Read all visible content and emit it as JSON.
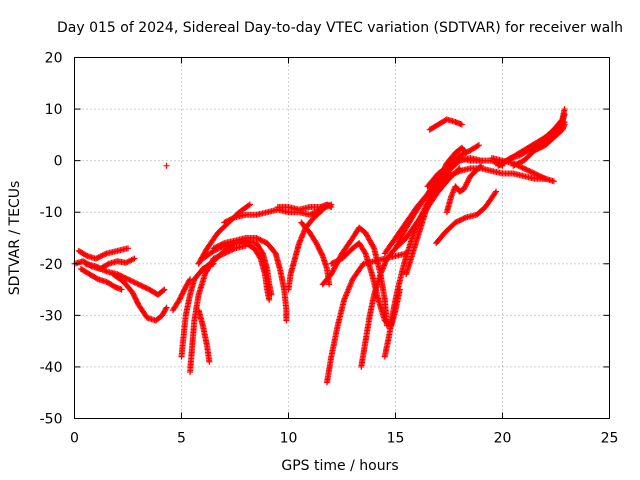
{
  "chart_data": {
    "type": "scatter",
    "title": "Day 015 of 2024, Sidereal Day-to-day VTEC variation (SDTVAR) for receiver walh",
    "xlabel": "GPS time / hours",
    "ylabel": "SDTVAR / TECUs",
    "xlim": [
      0,
      25
    ],
    "ylim": [
      -50,
      20
    ],
    "xticks": [
      0,
      5,
      10,
      15,
      20,
      25
    ],
    "yticks": [
      -50,
      -40,
      -30,
      -20,
      -10,
      0,
      10,
      20
    ],
    "grid": true,
    "legend": "none",
    "marker": "plus",
    "color": "#ff0000",
    "series": [
      {
        "points": [
          [
            0.0,
            -20
          ],
          [
            0.4,
            -19.5
          ],
          [
            0.8,
            -20.5
          ],
          [
            1.2,
            -21
          ],
          [
            1.6,
            -20
          ],
          [
            2.0,
            -19.5
          ],
          [
            2.4,
            -19.8
          ],
          [
            2.8,
            -19
          ]
        ]
      },
      {
        "points": [
          [
            0.2,
            -17.5
          ],
          [
            0.6,
            -18.5
          ],
          [
            1.0,
            -19
          ],
          [
            1.5,
            -18
          ],
          [
            2.0,
            -17.5
          ],
          [
            2.5,
            -17
          ]
        ]
      },
      {
        "points": [
          [
            0.3,
            -21
          ],
          [
            0.7,
            -22
          ],
          [
            1.1,
            -23
          ],
          [
            1.5,
            -23.5
          ],
          [
            1.9,
            -24.5
          ],
          [
            2.2,
            -25
          ]
        ]
      },
      {
        "points": [
          [
            0.5,
            -20
          ],
          [
            1.0,
            -20.5
          ],
          [
            1.5,
            -21.5
          ],
          [
            2.0,
            -22
          ],
          [
            2.5,
            -23
          ],
          [
            3.0,
            -24
          ],
          [
            3.5,
            -25
          ],
          [
            3.9,
            -26
          ],
          [
            4.2,
            -25
          ]
        ]
      },
      {
        "points": [
          [
            1.8,
            -22
          ],
          [
            2.3,
            -23.5
          ],
          [
            2.7,
            -25.5
          ],
          [
            3.0,
            -28
          ],
          [
            3.4,
            -30.5
          ],
          [
            3.8,
            -31
          ],
          [
            4.1,
            -30
          ],
          [
            4.3,
            -28.5
          ]
        ]
      },
      {
        "points": [
          [
            4.3,
            -1
          ]
        ]
      },
      {
        "points": [
          [
            4.6,
            -29
          ],
          [
            4.9,
            -27
          ],
          [
            5.2,
            -24.5
          ],
          [
            5.4,
            -23
          ]
        ]
      },
      {
        "points": [
          [
            5.0,
            -38
          ],
          [
            5.1,
            -34
          ],
          [
            5.2,
            -30
          ],
          [
            5.4,
            -26
          ],
          [
            5.6,
            -23
          ],
          [
            6.0,
            -21
          ],
          [
            6.5,
            -20
          ]
        ]
      },
      {
        "points": [
          [
            5.4,
            -41
          ],
          [
            5.5,
            -36
          ],
          [
            5.6,
            -31
          ],
          [
            5.8,
            -26
          ],
          [
            6.1,
            -22
          ],
          [
            6.5,
            -19
          ],
          [
            7.0,
            -18
          ],
          [
            7.5,
            -17
          ],
          [
            8.0,
            -16.5
          ]
        ]
      },
      {
        "points": [
          [
            5.8,
            -29
          ],
          [
            6.0,
            -32
          ],
          [
            6.2,
            -36
          ],
          [
            6.3,
            -39
          ]
        ]
      },
      {
        "points": [
          [
            6.0,
            -19
          ],
          [
            6.5,
            -17.5
          ],
          [
            7.0,
            -16.5
          ],
          [
            7.5,
            -16
          ],
          [
            8.0,
            -16
          ],
          [
            8.4,
            -17
          ],
          [
            8.7,
            -19
          ],
          [
            8.9,
            -22
          ],
          [
            9.0,
            -25
          ],
          [
            9.1,
            -27
          ]
        ]
      },
      {
        "points": [
          [
            5.8,
            -20
          ],
          [
            6.2,
            -17
          ],
          [
            6.7,
            -14
          ],
          [
            7.2,
            -12
          ],
          [
            7.7,
            -10
          ],
          [
            8.2,
            -8.5
          ]
        ]
      },
      {
        "points": [
          [
            6.0,
            -21
          ],
          [
            6.5,
            -19.5
          ],
          [
            7.0,
            -17.5
          ],
          [
            7.5,
            -16
          ],
          [
            8.0,
            -15.5
          ],
          [
            8.5,
            -16
          ],
          [
            8.8,
            -18
          ],
          [
            9.0,
            -21
          ],
          [
            9.1,
            -24
          ],
          [
            9.2,
            -26
          ]
        ]
      },
      {
        "points": [
          [
            6.5,
            -17
          ],
          [
            7.0,
            -16
          ],
          [
            7.5,
            -15.5
          ],
          [
            8.0,
            -15
          ],
          [
            8.5,
            -15
          ],
          [
            9.0,
            -16
          ],
          [
            9.4,
            -18
          ],
          [
            9.6,
            -21
          ],
          [
            9.8,
            -25
          ],
          [
            9.9,
            -29
          ],
          [
            9.9,
            -31
          ]
        ]
      },
      {
        "points": [
          [
            7.0,
            -12
          ],
          [
            7.5,
            -11
          ],
          [
            8.0,
            -10.5
          ],
          [
            8.5,
            -10.5
          ],
          [
            9.0,
            -10
          ],
          [
            9.5,
            -9.5
          ],
          [
            10.0,
            -10
          ],
          [
            10.5,
            -10
          ],
          [
            11.0,
            -10.5
          ],
          [
            11.5,
            -9.5
          ],
          [
            12.0,
            -8.5
          ]
        ]
      },
      {
        "points": [
          [
            9.5,
            -9
          ],
          [
            10.0,
            -9
          ],
          [
            10.5,
            -9.5
          ],
          [
            11.0,
            -9
          ],
          [
            11.5,
            -9
          ],
          [
            11.8,
            -8.5
          ],
          [
            12.0,
            -9
          ]
        ]
      },
      {
        "points": [
          [
            10.6,
            -12
          ],
          [
            11.0,
            -14
          ],
          [
            11.3,
            -16
          ],
          [
            11.6,
            -18.5
          ],
          [
            11.8,
            -21
          ],
          [
            11.9,
            -24
          ]
        ]
      },
      {
        "points": [
          [
            10.0,
            -25
          ],
          [
            10.1,
            -22
          ],
          [
            10.3,
            -19
          ],
          [
            10.5,
            -16
          ],
          [
            10.8,
            -13
          ],
          [
            11.2,
            -11
          ],
          [
            11.6,
            -9.5
          ]
        ]
      },
      {
        "points": [
          [
            11.8,
            -43
          ],
          [
            12.0,
            -38
          ],
          [
            12.3,
            -32
          ],
          [
            12.6,
            -27
          ],
          [
            13.0,
            -23
          ],
          [
            13.5,
            -20
          ],
          [
            14.0,
            -19.5
          ],
          [
            14.5,
            -19
          ],
          [
            15.0,
            -18.5
          ],
          [
            15.5,
            -18
          ]
        ]
      },
      {
        "points": [
          [
            13.4,
            -40
          ],
          [
            13.6,
            -35
          ],
          [
            13.8,
            -30
          ],
          [
            14.0,
            -26
          ],
          [
            14.3,
            -22
          ],
          [
            14.6,
            -19
          ],
          [
            15.0,
            -17
          ],
          [
            15.5,
            -15
          ],
          [
            16.0,
            -12
          ],
          [
            16.5,
            -9
          ],
          [
            17.0,
            -6
          ],
          [
            17.5,
            -3.5
          ],
          [
            18.0,
            -1.5
          ]
        ]
      },
      {
        "points": [
          [
            12.0,
            -20
          ],
          [
            12.5,
            -19
          ],
          [
            13.0,
            -17
          ],
          [
            13.3,
            -16
          ],
          [
            13.6,
            -18
          ],
          [
            13.9,
            -22
          ],
          [
            14.2,
            -27
          ],
          [
            14.5,
            -31
          ],
          [
            14.8,
            -32
          ],
          [
            15.0,
            -29
          ],
          [
            15.2,
            -25
          ]
        ]
      },
      {
        "points": [
          [
            11.6,
            -24
          ],
          [
            12.0,
            -22
          ],
          [
            12.5,
            -18
          ],
          [
            13.0,
            -15
          ],
          [
            13.3,
            -13
          ],
          [
            13.6,
            -14
          ],
          [
            14.0,
            -17
          ],
          [
            14.3,
            -22
          ],
          [
            14.5,
            -27
          ],
          [
            14.6,
            -32
          ]
        ]
      },
      {
        "points": [
          [
            14.5,
            -38
          ],
          [
            14.7,
            -34
          ],
          [
            14.9,
            -29
          ],
          [
            15.1,
            -25
          ],
          [
            15.4,
            -20
          ],
          [
            15.7,
            -16
          ],
          [
            16.0,
            -12.5
          ],
          [
            16.4,
            -9
          ],
          [
            16.8,
            -6
          ],
          [
            17.2,
            -3.5
          ],
          [
            17.6,
            -1.5
          ],
          [
            18.0,
            0
          ]
        ]
      },
      {
        "points": [
          [
            15.5,
            -22
          ],
          [
            15.8,
            -18
          ],
          [
            16.1,
            -14
          ],
          [
            16.4,
            -10
          ],
          [
            16.7,
            -7
          ],
          [
            17.0,
            -4
          ],
          [
            17.3,
            -2
          ],
          [
            17.6,
            0
          ],
          [
            18.0,
            0.5
          ],
          [
            18.5,
            0
          ],
          [
            19.0,
            0
          ]
        ]
      },
      {
        "points": [
          [
            15.0,
            -17
          ],
          [
            15.5,
            -13
          ],
          [
            16.0,
            -9.5
          ],
          [
            16.5,
            -6.5
          ],
          [
            17.0,
            -4.5
          ],
          [
            17.5,
            -3
          ],
          [
            18.0,
            -2
          ],
          [
            18.5,
            -1.5
          ],
          [
            19.0,
            -1.5
          ],
          [
            19.5,
            -2
          ],
          [
            20.0,
            -2.5
          ],
          [
            20.5,
            -2.5
          ],
          [
            21.0,
            -3
          ],
          [
            21.5,
            -3.5
          ],
          [
            22.0,
            -3.5
          ]
        ]
      },
      {
        "points": [
          [
            14.5,
            -18
          ],
          [
            15.0,
            -15
          ],
          [
            15.5,
            -12
          ],
          [
            16.0,
            -9
          ],
          [
            16.5,
            -6.5
          ],
          [
            17.0,
            -3
          ],
          [
            17.5,
            -1
          ],
          [
            18.0,
            1
          ],
          [
            18.5,
            2
          ],
          [
            18.9,
            3
          ]
        ]
      },
      {
        "points": [
          [
            16.6,
            6
          ],
          [
            17.0,
            7
          ],
          [
            17.4,
            8
          ],
          [
            17.8,
            7.5
          ],
          [
            18.1,
            7
          ]
        ]
      },
      {
        "points": [
          [
            16.5,
            -9
          ],
          [
            16.8,
            -6
          ],
          [
            17.1,
            -3
          ],
          [
            17.4,
            -0.5
          ],
          [
            17.8,
            1.5
          ],
          [
            18.1,
            2.5
          ],
          [
            18.3,
            1.5
          ]
        ]
      },
      {
        "points": [
          [
            17.4,
            -10
          ],
          [
            17.6,
            -7
          ],
          [
            17.8,
            -5
          ],
          [
            18.0,
            -6
          ],
          [
            18.2,
            -5.5
          ],
          [
            18.5,
            -3
          ],
          [
            19.0,
            -1
          ]
        ]
      },
      {
        "points": [
          [
            16.9,
            -16
          ],
          [
            17.3,
            -14
          ],
          [
            17.8,
            -12
          ],
          [
            18.3,
            -11
          ],
          [
            18.8,
            -10.5
          ],
          [
            19.2,
            -9
          ],
          [
            19.7,
            -6
          ]
        ]
      },
      {
        "points": [
          [
            16.5,
            -5
          ],
          [
            17.0,
            -2.5
          ],
          [
            17.5,
            -1
          ],
          [
            18.0,
            0
          ],
          [
            18.5,
            0.5
          ],
          [
            19.0,
            0
          ],
          [
            19.5,
            0
          ],
          [
            20.0,
            -1
          ]
        ]
      },
      {
        "points": [
          [
            19.5,
            0.5
          ],
          [
            20.0,
            0
          ],
          [
            20.5,
            -0.5
          ],
          [
            21.0,
            -1.5
          ],
          [
            21.5,
            -2.5
          ],
          [
            22.0,
            -3.5
          ],
          [
            22.4,
            -4
          ]
        ]
      },
      {
        "points": [
          [
            19.8,
            -1
          ],
          [
            20.2,
            0
          ],
          [
            20.6,
            1
          ],
          [
            21.0,
            2
          ],
          [
            21.4,
            3
          ],
          [
            21.8,
            4
          ],
          [
            22.2,
            5
          ],
          [
            22.6,
            6
          ],
          [
            22.9,
            7.5
          ]
        ]
      },
      {
        "points": [
          [
            20.0,
            -0.5
          ],
          [
            20.4,
            0.5
          ],
          [
            20.8,
            1
          ],
          [
            21.2,
            2
          ],
          [
            21.6,
            3
          ],
          [
            22.0,
            4.5
          ],
          [
            22.4,
            6
          ],
          [
            22.8,
            8
          ],
          [
            22.9,
            10
          ]
        ]
      },
      {
        "points": [
          [
            20.5,
            -1
          ],
          [
            21.0,
            0
          ],
          [
            21.5,
            2
          ],
          [
            22.0,
            3
          ],
          [
            22.4,
            4.5
          ],
          [
            22.8,
            6
          ],
          [
            22.9,
            7
          ]
        ]
      },
      {
        "points": [
          [
            21.5,
            2
          ],
          [
            21.9,
            3
          ],
          [
            22.3,
            4.5
          ],
          [
            22.7,
            6
          ],
          [
            22.9,
            9
          ]
        ]
      }
    ]
  }
}
